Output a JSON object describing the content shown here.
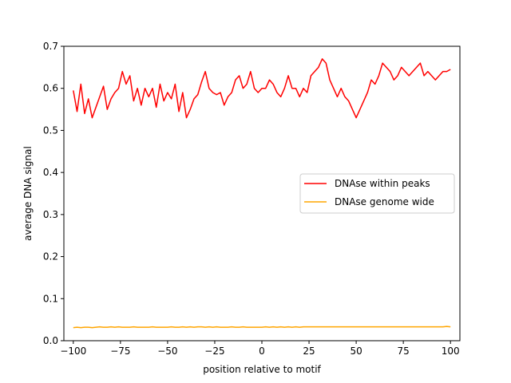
{
  "chart_data": {
    "type": "line",
    "xlabel": "position relative to motif",
    "ylabel": "average DNA signal",
    "xlim": [
      -105,
      105
    ],
    "ylim": [
      0.0,
      0.7
    ],
    "xticks": [
      -100,
      -75,
      -50,
      -25,
      0,
      25,
      50,
      75,
      100
    ],
    "xtick_labels": [
      "−100",
      "−75",
      "−50",
      "−25",
      "0",
      "25",
      "50",
      "75",
      "100"
    ],
    "yticks": [
      0.0,
      0.1,
      0.2,
      0.3,
      0.4,
      0.5,
      0.6,
      0.7
    ],
    "ytick_labels": [
      "0.0",
      "0.1",
      "0.2",
      "0.3",
      "0.4",
      "0.5",
      "0.6",
      "0.7"
    ],
    "grid": false,
    "legend_position": "center-right",
    "x": [
      -100,
      -98,
      -96,
      -94,
      -92,
      -90,
      -88,
      -86,
      -84,
      -82,
      -80,
      -78,
      -76,
      -74,
      -72,
      -70,
      -68,
      -66,
      -64,
      -62,
      -60,
      -58,
      -56,
      -54,
      -52,
      -50,
      -48,
      -46,
      -44,
      -42,
      -40,
      -38,
      -36,
      -34,
      -32,
      -30,
      -28,
      -26,
      -24,
      -22,
      -20,
      -18,
      -16,
      -14,
      -12,
      -10,
      -8,
      -6,
      -4,
      -2,
      0,
      2,
      4,
      6,
      8,
      10,
      12,
      14,
      16,
      18,
      20,
      22,
      24,
      26,
      28,
      30,
      32,
      34,
      36,
      38,
      40,
      42,
      44,
      46,
      48,
      50,
      52,
      54,
      56,
      58,
      60,
      62,
      64,
      66,
      68,
      70,
      72,
      74,
      76,
      78,
      80,
      82,
      84,
      86,
      88,
      90,
      92,
      94,
      96,
      98,
      100
    ],
    "series": [
      {
        "name": "DNAse within peaks",
        "color": "#ff0000",
        "values": [
          0.595,
          0.545,
          0.61,
          0.54,
          0.575,
          0.53,
          0.555,
          0.58,
          0.605,
          0.55,
          0.575,
          0.59,
          0.6,
          0.64,
          0.61,
          0.63,
          0.57,
          0.6,
          0.56,
          0.6,
          0.58,
          0.6,
          0.555,
          0.61,
          0.57,
          0.59,
          0.575,
          0.61,
          0.545,
          0.59,
          0.53,
          0.55,
          0.575,
          0.585,
          0.615,
          0.64,
          0.6,
          0.59,
          0.585,
          0.59,
          0.56,
          0.58,
          0.59,
          0.62,
          0.63,
          0.6,
          0.61,
          0.64,
          0.6,
          0.59,
          0.6,
          0.6,
          0.62,
          0.61,
          0.59,
          0.58,
          0.6,
          0.63,
          0.6,
          0.6,
          0.58,
          0.6,
          0.59,
          0.63,
          0.64,
          0.65,
          0.67,
          0.66,
          0.62,
          0.6,
          0.58,
          0.6,
          0.58,
          0.57,
          0.55,
          0.53,
          0.55,
          0.57,
          0.59,
          0.62,
          0.61,
          0.63,
          0.66,
          0.65,
          0.64,
          0.62,
          0.63,
          0.65,
          0.64,
          0.63,
          0.64,
          0.65,
          0.66,
          0.63,
          0.64,
          0.63,
          0.62,
          0.63,
          0.64,
          0.64,
          0.645
        ]
      },
      {
        "name": "DNAse genome wide",
        "color": "#ffa500",
        "values": [
          0.031,
          0.032,
          0.031,
          0.032,
          0.032,
          0.031,
          0.032,
          0.033,
          0.032,
          0.032,
          0.033,
          0.032,
          0.033,
          0.032,
          0.032,
          0.032,
          0.033,
          0.032,
          0.032,
          0.032,
          0.032,
          0.033,
          0.032,
          0.032,
          0.032,
          0.032,
          0.033,
          0.032,
          0.032,
          0.033,
          0.032,
          0.033,
          0.032,
          0.033,
          0.033,
          0.032,
          0.033,
          0.032,
          0.033,
          0.032,
          0.032,
          0.032,
          0.033,
          0.032,
          0.032,
          0.033,
          0.032,
          0.032,
          0.032,
          0.032,
          0.032,
          0.033,
          0.032,
          0.033,
          0.032,
          0.033,
          0.032,
          0.033,
          0.032,
          0.033,
          0.032,
          0.033,
          0.033,
          0.033,
          0.033,
          0.033,
          0.033,
          0.033,
          0.033,
          0.033,
          0.033,
          0.033,
          0.033,
          0.033,
          0.033,
          0.033,
          0.033,
          0.033,
          0.033,
          0.033,
          0.033,
          0.033,
          0.033,
          0.033,
          0.033,
          0.033,
          0.033,
          0.033,
          0.033,
          0.033,
          0.033,
          0.033,
          0.033,
          0.033,
          0.033,
          0.033,
          0.033,
          0.033,
          0.033,
          0.034,
          0.033
        ]
      }
    ]
  }
}
